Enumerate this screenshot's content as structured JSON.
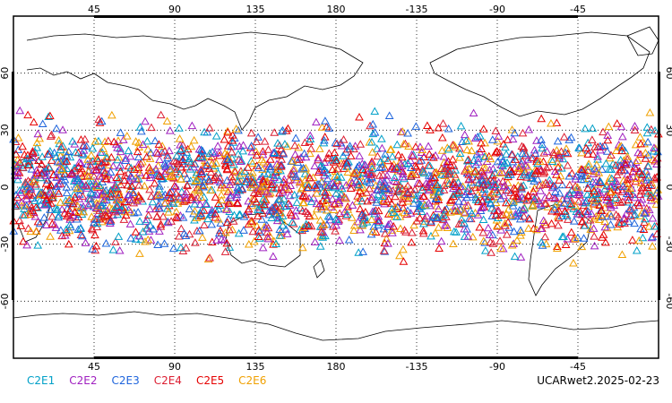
{
  "chart_data": {
    "type": "scatter",
    "projection": "equirectangular",
    "central_longitude": 180,
    "lon_range": [
      0,
      360
    ],
    "lat_range": [
      -90,
      90
    ],
    "gridlines": true,
    "grid_style": "dotted",
    "top_ticks": [
      "45",
      "90",
      "135",
      "180",
      "-135",
      "-90",
      "-45"
    ],
    "bottom_ticks": [
      "45",
      "90",
      "135",
      "180",
      "-135",
      "-90",
      "-45"
    ],
    "lat_ticks": [
      "60",
      "30",
      "0",
      "-30",
      "-60"
    ],
    "marker": "open-triangle",
    "point_lat_extent": [
      -45,
      45
    ],
    "series": [
      {
        "name": "C2E1",
        "color": "#00a0c8"
      },
      {
        "name": "C2E2",
        "color": "#a020c0"
      },
      {
        "name": "C2E3",
        "color": "#1e64dc"
      },
      {
        "name": "C2E4",
        "color": "#dc1e32"
      },
      {
        "name": "C2E5",
        "color": "#e60000"
      },
      {
        "name": "C2E6",
        "color": "#f0a000"
      }
    ]
  },
  "stamp": "UCARwet2.2025-02-23"
}
